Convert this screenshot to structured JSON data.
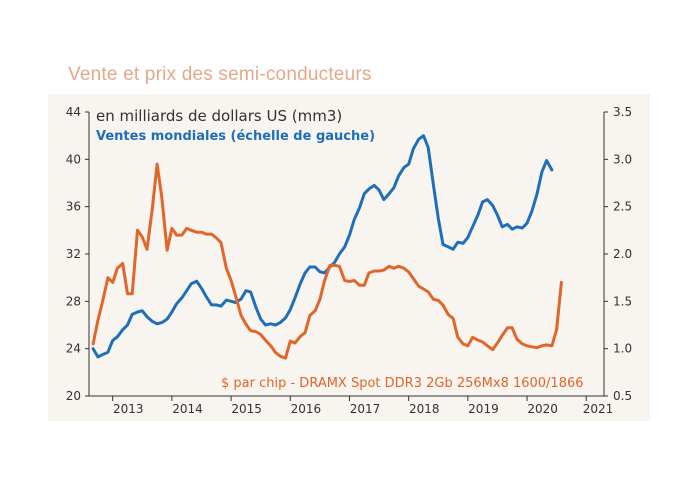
{
  "chart_data": {
    "type": "line",
    "title": "Vente et prix des semi-conducteurs",
    "subtitle": "en milliards de dollars US (mm3)",
    "colors": {
      "sales": "#1f6fb8",
      "price": "#e0662a",
      "axis": "#333333",
      "background": "#f8f4ef",
      "title": "#e2a98b"
    },
    "x_ticks": [
      "2013",
      "2014",
      "2015",
      "2016",
      "2017",
      "2018",
      "2019",
      "2020",
      "2021"
    ],
    "x_range": [
      2012.6,
      2021.3
    ],
    "left_axis": {
      "ticks": [
        "20",
        "24",
        "28",
        "32",
        "36",
        "40",
        "44"
      ],
      "ylim": [
        20,
        44
      ]
    },
    "right_axis": {
      "ticks": [
        "0.5",
        "1.0",
        "1.5",
        "2.0",
        "2.5",
        "3.0",
        "3.5"
      ],
      "ylim": [
        0.5,
        3.5
      ]
    },
    "series": [
      {
        "name": "Ventes mondiales (échelle de gauche)",
        "axis": "left",
        "points": [
          [
            2012.67,
            24.0
          ],
          [
            2012.75,
            23.3
          ],
          [
            2012.83,
            23.5
          ],
          [
            2012.92,
            23.7
          ],
          [
            2013.0,
            24.7
          ],
          [
            2013.08,
            25.0
          ],
          [
            2013.17,
            25.6
          ],
          [
            2013.25,
            26.0
          ],
          [
            2013.33,
            26.9
          ],
          [
            2013.42,
            27.1
          ],
          [
            2013.5,
            27.2
          ],
          [
            2013.58,
            26.7
          ],
          [
            2013.67,
            26.3
          ],
          [
            2013.75,
            26.1
          ],
          [
            2013.83,
            26.2
          ],
          [
            2013.92,
            26.5
          ],
          [
            2014.0,
            27.1
          ],
          [
            2014.08,
            27.8
          ],
          [
            2014.17,
            28.3
          ],
          [
            2014.25,
            28.9
          ],
          [
            2014.33,
            29.5
          ],
          [
            2014.42,
            29.7
          ],
          [
            2014.5,
            29.1
          ],
          [
            2014.58,
            28.4
          ],
          [
            2014.67,
            27.7
          ],
          [
            2014.75,
            27.7
          ],
          [
            2014.83,
            27.6
          ],
          [
            2014.92,
            28.1
          ],
          [
            2015.0,
            28.0
          ],
          [
            2015.08,
            27.9
          ],
          [
            2015.17,
            28.2
          ],
          [
            2015.25,
            28.9
          ],
          [
            2015.33,
            28.8
          ],
          [
            2015.42,
            27.5
          ],
          [
            2015.5,
            26.5
          ],
          [
            2015.58,
            26.0
          ],
          [
            2015.67,
            26.1
          ],
          [
            2015.75,
            26.0
          ],
          [
            2015.83,
            26.2
          ],
          [
            2015.92,
            26.6
          ],
          [
            2016.0,
            27.3
          ],
          [
            2016.08,
            28.3
          ],
          [
            2016.17,
            29.5
          ],
          [
            2016.25,
            30.4
          ],
          [
            2016.33,
            30.9
          ],
          [
            2016.42,
            30.9
          ],
          [
            2016.5,
            30.5
          ],
          [
            2016.58,
            30.4
          ],
          [
            2016.67,
            30.9
          ],
          [
            2016.75,
            31.3
          ],
          [
            2016.83,
            32.0
          ],
          [
            2016.92,
            32.6
          ],
          [
            2017.0,
            33.6
          ],
          [
            2017.08,
            34.9
          ],
          [
            2017.17,
            35.9
          ],
          [
            2017.25,
            37.1
          ],
          [
            2017.33,
            37.5
          ],
          [
            2017.42,
            37.8
          ],
          [
            2017.5,
            37.4
          ],
          [
            2017.58,
            36.6
          ],
          [
            2017.67,
            37.1
          ],
          [
            2017.75,
            37.6
          ],
          [
            2017.83,
            38.6
          ],
          [
            2017.92,
            39.3
          ],
          [
            2018.0,
            39.6
          ],
          [
            2018.08,
            40.9
          ],
          [
            2018.17,
            41.7
          ],
          [
            2018.25,
            42.0
          ],
          [
            2018.33,
            41.0
          ],
          [
            2018.42,
            37.8
          ],
          [
            2018.5,
            35.0
          ],
          [
            2018.58,
            32.8
          ],
          [
            2018.67,
            32.6
          ],
          [
            2018.75,
            32.4
          ],
          [
            2018.83,
            33.0
          ],
          [
            2018.92,
            32.9
          ],
          [
            2019.0,
            33.4
          ],
          [
            2019.08,
            34.3
          ],
          [
            2019.17,
            35.3
          ],
          [
            2019.25,
            36.4
          ],
          [
            2019.33,
            36.6
          ],
          [
            2019.42,
            36.1
          ],
          [
            2019.5,
            35.3
          ],
          [
            2019.58,
            34.3
          ],
          [
            2019.67,
            34.5
          ],
          [
            2019.75,
            34.1
          ],
          [
            2019.83,
            34.3
          ],
          [
            2019.92,
            34.2
          ],
          [
            2020.0,
            34.6
          ],
          [
            2020.08,
            35.6
          ],
          [
            2020.17,
            37.1
          ],
          [
            2020.25,
            38.9
          ],
          [
            2020.33,
            39.9
          ],
          [
            2020.42,
            39.1
          ]
        ]
      },
      {
        "name": "$ par chip - DRAMX Spot DDR3 2Gb 256Mx8 1600/1866",
        "axis": "right",
        "points": [
          [
            2012.67,
            1.05
          ],
          [
            2012.75,
            1.3
          ],
          [
            2012.83,
            1.5
          ],
          [
            2012.92,
            1.75
          ],
          [
            2013.0,
            1.7
          ],
          [
            2013.08,
            1.85
          ],
          [
            2013.17,
            1.9
          ],
          [
            2013.25,
            1.58
          ],
          [
            2013.33,
            1.58
          ],
          [
            2013.42,
            2.25
          ],
          [
            2013.5,
            2.18
          ],
          [
            2013.58,
            2.05
          ],
          [
            2013.67,
            2.48
          ],
          [
            2013.75,
            2.95
          ],
          [
            2013.83,
            2.6
          ],
          [
            2013.92,
            2.04
          ],
          [
            2014.0,
            2.27
          ],
          [
            2014.08,
            2.2
          ],
          [
            2014.17,
            2.2
          ],
          [
            2014.25,
            2.27
          ],
          [
            2014.33,
            2.25
          ],
          [
            2014.42,
            2.23
          ],
          [
            2014.5,
            2.23
          ],
          [
            2014.58,
            2.21
          ],
          [
            2014.67,
            2.21
          ],
          [
            2014.75,
            2.17
          ],
          [
            2014.83,
            2.12
          ],
          [
            2014.92,
            1.85
          ],
          [
            2015.0,
            1.72
          ],
          [
            2015.08,
            1.55
          ],
          [
            2015.17,
            1.35
          ],
          [
            2015.25,
            1.26
          ],
          [
            2015.33,
            1.19
          ],
          [
            2015.42,
            1.18
          ],
          [
            2015.5,
            1.15
          ],
          [
            2015.58,
            1.09
          ],
          [
            2015.67,
            1.03
          ],
          [
            2015.75,
            0.96
          ],
          [
            2015.83,
            0.92
          ],
          [
            2015.92,
            0.9
          ],
          [
            2016.0,
            1.08
          ],
          [
            2016.08,
            1.06
          ],
          [
            2016.17,
            1.13
          ],
          [
            2016.25,
            1.17
          ],
          [
            2016.33,
            1.35
          ],
          [
            2016.42,
            1.4
          ],
          [
            2016.5,
            1.52
          ],
          [
            2016.58,
            1.72
          ],
          [
            2016.67,
            1.88
          ],
          [
            2016.75,
            1.88
          ],
          [
            2016.83,
            1.87
          ],
          [
            2016.92,
            1.72
          ],
          [
            2017.0,
            1.71
          ],
          [
            2017.08,
            1.72
          ],
          [
            2017.17,
            1.67
          ],
          [
            2017.25,
            1.67
          ],
          [
            2017.33,
            1.8
          ],
          [
            2017.42,
            1.82
          ],
          [
            2017.5,
            1.82
          ],
          [
            2017.58,
            1.83
          ],
          [
            2017.67,
            1.87
          ],
          [
            2017.75,
            1.85
          ],
          [
            2017.83,
            1.87
          ],
          [
            2017.92,
            1.85
          ],
          [
            2018.0,
            1.81
          ],
          [
            2018.08,
            1.74
          ],
          [
            2018.17,
            1.66
          ],
          [
            2018.25,
            1.63
          ],
          [
            2018.33,
            1.6
          ],
          [
            2018.42,
            1.52
          ],
          [
            2018.5,
            1.51
          ],
          [
            2018.58,
            1.46
          ],
          [
            2018.67,
            1.36
          ],
          [
            2018.75,
            1.32
          ],
          [
            2018.83,
            1.12
          ],
          [
            2018.92,
            1.05
          ],
          [
            2019.0,
            1.03
          ],
          [
            2019.08,
            1.12
          ],
          [
            2019.17,
            1.09
          ],
          [
            2019.25,
            1.07
          ],
          [
            2019.33,
            1.03
          ],
          [
            2019.42,
            0.99
          ],
          [
            2019.5,
            1.06
          ],
          [
            2019.58,
            1.14
          ],
          [
            2019.67,
            1.22
          ],
          [
            2019.75,
            1.22
          ],
          [
            2019.83,
            1.1
          ],
          [
            2019.92,
            1.05
          ],
          [
            2020.0,
            1.03
          ],
          [
            2020.08,
            1.02
          ],
          [
            2020.17,
            1.01
          ],
          [
            2020.25,
            1.03
          ],
          [
            2020.33,
            1.04
          ],
          [
            2020.42,
            1.03
          ],
          [
            2020.5,
            1.2
          ],
          [
            2020.58,
            1.7
          ]
        ]
      }
    ]
  }
}
